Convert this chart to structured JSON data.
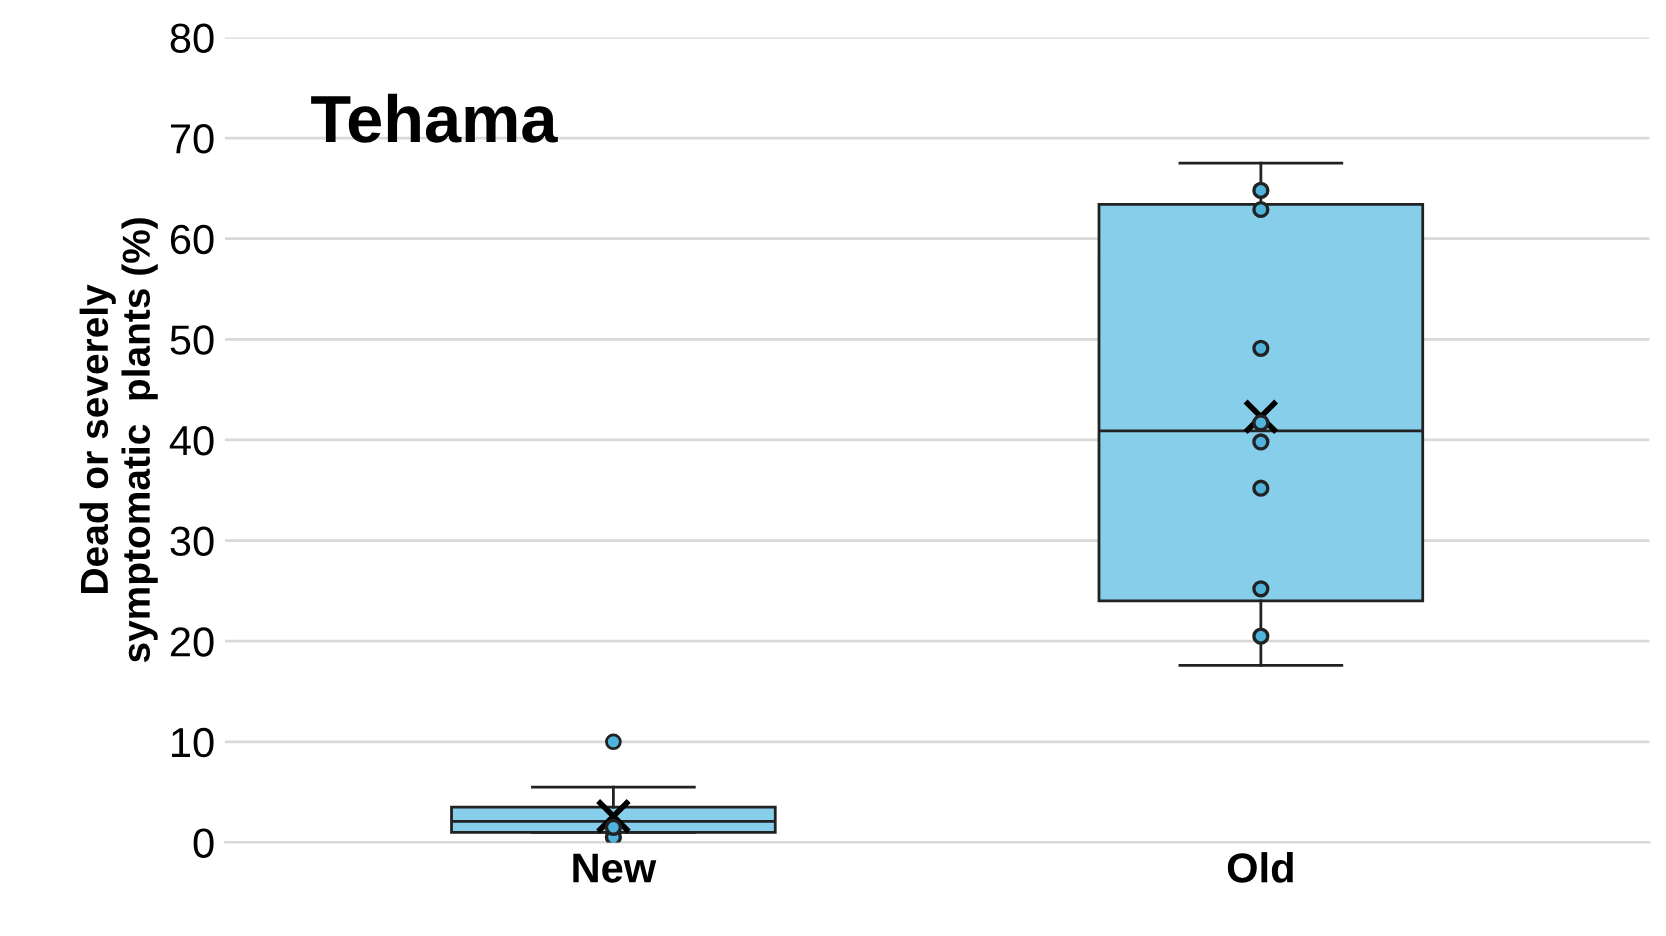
{
  "chart_data": {
    "type": "box",
    "title": "Tehama",
    "ylabel": "Dead or severely\nsymptomatic  plants (%)",
    "categories": [
      "New",
      "Old"
    ],
    "color": "#87ceeb",
    "boxes": [
      {
        "low": 1.0,
        "q1": 1.0,
        "median": 2.1,
        "q3": 3.5,
        "high": 5.5,
        "mean": 2.6,
        "outliers": [
          10.0
        ]
      },
      {
        "low": 17.6,
        "q1": 24.0,
        "median": 40.9,
        "q3": 63.4,
        "high": 67.5,
        "mean": 42.3
      }
    ],
    "series": [
      {
        "type": "scatter",
        "color": "#4fb3dc",
        "x": [
          "New",
          "New",
          "Old",
          "Old",
          "Old",
          "Old",
          "Old",
          "Old",
          "Old",
          "Old"
        ],
        "values": [
          0.5,
          1.5,
          64.8,
          62.9,
          49.1,
          41.7,
          39.8,
          35.2,
          25.2,
          20.5
        ]
      }
    ],
    "ylim": [
      0,
      80
    ],
    "yticks": [
      0,
      10,
      20,
      30,
      40,
      50,
      60,
      70,
      80
    ],
    "grid": "y",
    "legend": false,
    "marker": "circle"
  }
}
